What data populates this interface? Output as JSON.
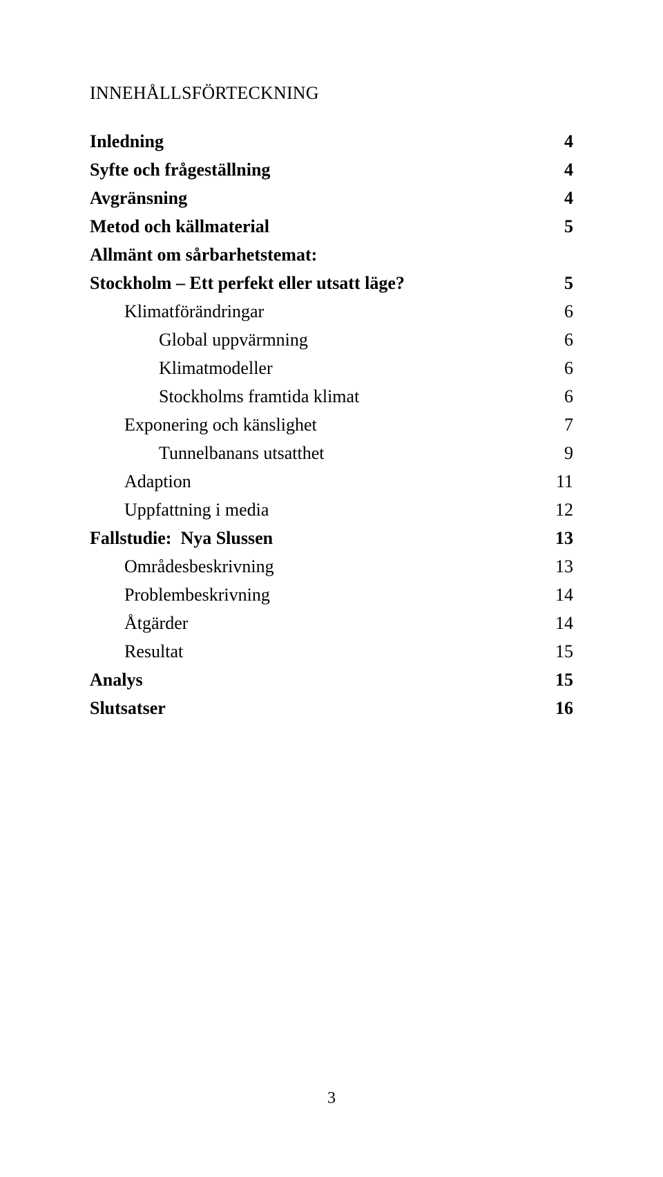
{
  "toc": {
    "title": "INNEHÅLLSFÖRTECKNING",
    "entries": [
      {
        "label": "Inledning",
        "page": "4",
        "indent": 0,
        "bold": true
      },
      {
        "label": "Syfte och frågeställning",
        "page": "4",
        "indent": 0,
        "bold": true
      },
      {
        "label": "Avgränsning",
        "page": "4",
        "indent": 0,
        "bold": true
      },
      {
        "label": "Metod och källmaterial",
        "page": "5",
        "indent": 0,
        "bold": true
      },
      {
        "label": "Allmänt om sårbarhetstemat:",
        "page": "",
        "indent": 0,
        "bold": true
      },
      {
        "label": "Stockholm – Ett perfekt eller utsatt läge?",
        "page": "5",
        "indent": 0,
        "bold": true
      },
      {
        "label": "Klimatförändringar",
        "page": "6",
        "indent": 1,
        "bold": false
      },
      {
        "label": "Global uppvärmning",
        "page": "6",
        "indent": 2,
        "bold": false
      },
      {
        "label": "Klimatmodeller",
        "page": "6",
        "indent": 2,
        "bold": false
      },
      {
        "label": "Stockholms framtida klimat",
        "page": "6",
        "indent": 2,
        "bold": false
      },
      {
        "label": "Exponering och känslighet",
        "page": "7",
        "indent": 1,
        "bold": false
      },
      {
        "label": "Tunnelbanans utsatthet",
        "page": "9",
        "indent": 2,
        "bold": false
      },
      {
        "label": "Adaption",
        "page": "11",
        "indent": 1,
        "bold": false
      },
      {
        "label": "Uppfattning i media",
        "page": "12",
        "indent": 1,
        "bold": false
      },
      {
        "label": "Fallstudie:  Nya Slussen",
        "page": "13",
        "indent": 0,
        "bold": true
      },
      {
        "label": "Områdesbeskrivning",
        "page": "13",
        "indent": 1,
        "bold": false
      },
      {
        "label": "Problembeskrivning",
        "page": "14",
        "indent": 1,
        "bold": false
      },
      {
        "label": "Åtgärder",
        "page": "14",
        "indent": 1,
        "bold": false
      },
      {
        "label": "Resultat",
        "page": "15",
        "indent": 1,
        "bold": false
      },
      {
        "label": "Analys",
        "page": "15",
        "indent": 0,
        "bold": true
      },
      {
        "label": "Slutsatser",
        "page": "16",
        "indent": 0,
        "bold": true
      }
    ]
  },
  "footer": {
    "page_number": "3"
  }
}
